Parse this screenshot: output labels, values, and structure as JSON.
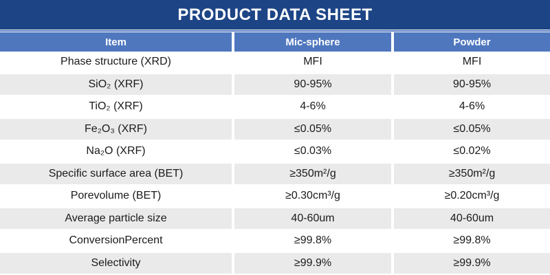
{
  "title": "PRODUCT DATA SHEET",
  "colors": {
    "title_bar_navy": "#1D4586",
    "header_row_blue": "#4F77BE",
    "stripe_gray": "#EAEAEA",
    "body_text": "#1A1A1A",
    "header_text": "#FFFFFF"
  },
  "table": {
    "columns": [
      "Item",
      "Mic-sphere",
      "Powder"
    ],
    "rows": [
      {
        "item": "Phase structure (XRD)",
        "mic_sphere": "MFI",
        "powder": "MFI"
      },
      {
        "item": "SiO₂ (XRF)",
        "mic_sphere": "90-95%",
        "powder": "90-95%"
      },
      {
        "item": "TiO₂ (XRF)",
        "mic_sphere": "4-6%",
        "powder": "4-6%"
      },
      {
        "item": "Fe₂O₃ (XRF)",
        "mic_sphere": "≤0.05%",
        "powder": "≤0.05%"
      },
      {
        "item": "Na₂O (XRF)",
        "mic_sphere": "≤0.03%",
        "powder": "≤0.02%"
      },
      {
        "item": "Specific surface area (BET)",
        "mic_sphere": "≥350m²/g",
        "powder": "≥350m²/g"
      },
      {
        "item": "Porevolume (BET)",
        "mic_sphere": "≥0.30cm³/g",
        "powder": "≥0.20cm³/g"
      },
      {
        "item": "Average particle size",
        "mic_sphere": "40-60um",
        "powder": "40-60um"
      },
      {
        "item": "ConversionPercent",
        "mic_sphere": "≥99.8%",
        "powder": "≥99.8%"
      },
      {
        "item": "Selectivity",
        "mic_sphere": "≥99.9%",
        "powder": "≥99.9%"
      }
    ]
  }
}
